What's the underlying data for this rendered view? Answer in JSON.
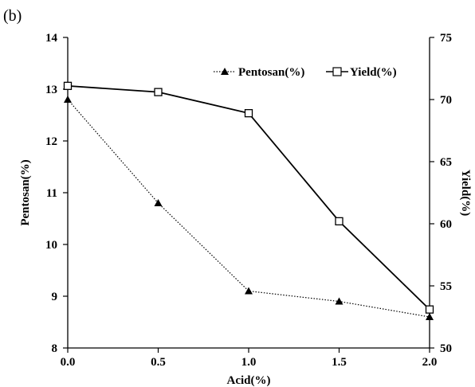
{
  "panel_label": "(b)",
  "chart_data": {
    "type": "line",
    "x": [
      0.0,
      0.5,
      1.0,
      1.5,
      2.0
    ],
    "xlabel": "Acid(%)",
    "xlim": [
      0.0,
      2.0
    ],
    "xticks": [
      "0.0",
      "0.5",
      "1.0",
      "1.5",
      "2.0"
    ],
    "ylabel_left": "Pentosan(%)",
    "ylim_left": [
      8,
      14
    ],
    "yticks_left": [
      "8",
      "9",
      "10",
      "11",
      "12",
      "13",
      "14"
    ],
    "ylabel_right": "Yield(%)",
    "ylim_right": [
      50,
      75
    ],
    "yticks_right": [
      "50",
      "55",
      "60",
      "65",
      "70",
      "75"
    ],
    "grid": false,
    "legend_position": "top-right",
    "series": [
      {
        "name": "Pentosan(%)",
        "axis": "left",
        "marker": "filled-triangle",
        "line_style": "dotted",
        "color": "#000000",
        "values": [
          12.8,
          10.8,
          9.1,
          8.9,
          8.6
        ]
      },
      {
        "name": "Yield(%)",
        "axis": "right",
        "marker": "open-square",
        "line_style": "solid",
        "color": "#000000",
        "values": [
          71.1,
          70.6,
          68.9,
          60.2,
          53.1
        ]
      }
    ]
  }
}
